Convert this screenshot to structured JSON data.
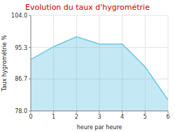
{
  "chart_data": {
    "type": "area",
    "title": "Evolution du taux d'hygrométrie",
    "xlabel": "heure par heure",
    "ylabel": "Taux hygrométrie %",
    "x": [
      0,
      1,
      2,
      3,
      4,
      5,
      6
    ],
    "values": [
      92.0,
      95.5,
      98.2,
      96.2,
      96.2,
      90.0,
      81.0
    ],
    "xlim": [
      0,
      6
    ],
    "xticks": [
      0,
      1,
      2,
      3,
      4,
      5,
      6
    ],
    "ylim": [
      78.0,
      104.0
    ],
    "yticks": [
      {
        "value": 78.0,
        "label": "78.0"
      },
      86.7,
      95.3,
      {
        "value": 104.0,
        "label": "104.0"
      }
    ],
    "color": "#6ec6e6",
    "grid": true
  }
}
